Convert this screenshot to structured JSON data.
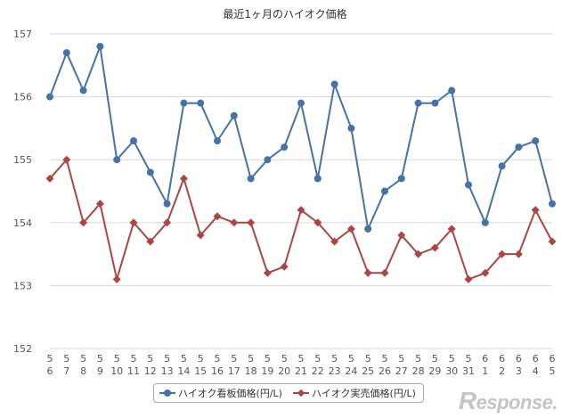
{
  "chart_data": {
    "type": "line",
    "title": "最近1ヶ月のハイオク価格",
    "xlabel": "",
    "ylabel": "",
    "ylim": [
      152,
      157
    ],
    "yticks": [
      152,
      153,
      154,
      155,
      156,
      157
    ],
    "grid": true,
    "legend_position": "bottom",
    "categories": [
      [
        "5",
        "6"
      ],
      [
        "5",
        "7"
      ],
      [
        "5",
        "8"
      ],
      [
        "5",
        "9"
      ],
      [
        "5",
        "10"
      ],
      [
        "5",
        "11"
      ],
      [
        "5",
        "12"
      ],
      [
        "5",
        "13"
      ],
      [
        "5",
        "14"
      ],
      [
        "5",
        "15"
      ],
      [
        "5",
        "16"
      ],
      [
        "5",
        "17"
      ],
      [
        "5",
        "18"
      ],
      [
        "5",
        "19"
      ],
      [
        "5",
        "20"
      ],
      [
        "5",
        "21"
      ],
      [
        "5",
        "22"
      ],
      [
        "5",
        "23"
      ],
      [
        "5",
        "24"
      ],
      [
        "5",
        "25"
      ],
      [
        "5",
        "26"
      ],
      [
        "5",
        "27"
      ],
      [
        "5",
        "28"
      ],
      [
        "5",
        "29"
      ],
      [
        "5",
        "30"
      ],
      [
        "5",
        "31"
      ],
      [
        "6",
        "1"
      ],
      [
        "6",
        "2"
      ],
      [
        "6",
        "3"
      ],
      [
        "6",
        "4"
      ],
      [
        "6",
        "5"
      ]
    ],
    "series": [
      {
        "name": "ハイオク看板価格(円/L)",
        "color": "#4572a7",
        "marker": "circle",
        "values": [
          156.0,
          156.7,
          156.1,
          156.8,
          155.0,
          155.3,
          154.8,
          154.3,
          155.9,
          155.9,
          155.3,
          155.7,
          154.7,
          155.0,
          155.2,
          155.9,
          154.7,
          156.2,
          155.5,
          153.9,
          154.5,
          154.7,
          155.9,
          155.9,
          156.1,
          154.6,
          154.0,
          154.9,
          155.2,
          155.3,
          154.3
        ]
      },
      {
        "name": "ハイオク実売価格(円/L)",
        "color": "#aa4643",
        "marker": "diamond",
        "values": [
          154.7,
          155.0,
          154.0,
          154.3,
          153.1,
          154.0,
          153.7,
          154.0,
          154.7,
          153.8,
          154.1,
          154.0,
          154.0,
          153.2,
          153.3,
          154.2,
          154.0,
          153.7,
          153.9,
          153.2,
          153.2,
          153.8,
          153.5,
          153.6,
          153.9,
          153.1,
          153.2,
          153.5,
          153.5,
          154.2,
          153.7
        ]
      }
    ]
  },
  "watermark": {
    "first": "R",
    "rest": "esponse."
  }
}
